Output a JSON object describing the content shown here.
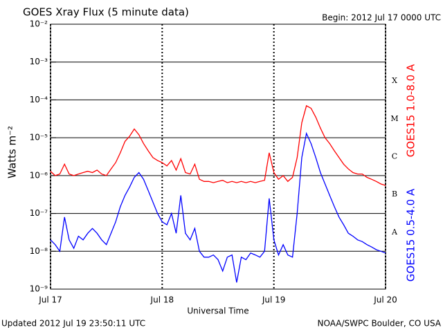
{
  "chart_data": {
    "type": "line",
    "title": "GOES Xray Flux (5 minute data)",
    "subtitle": "Begin:  2012 Jul 17 0000 UTC",
    "xlabel": "Universal Time",
    "ylabel": "Watts m⁻²",
    "footer_left": "Updated 2012 Jul 19 23:50:11 UTC",
    "footer_right": "NOAA/SWPC Boulder, CO USA",
    "flare_classes": [
      "X",
      "M",
      "C",
      "B",
      "A"
    ],
    "ylog": true,
    "grid": true,
    "xlim": [
      0,
      72
    ],
    "xticks": [
      {
        "value": 0,
        "label": "Jul 17"
      },
      {
        "value": 24,
        "label": "Jul 18"
      },
      {
        "value": 48,
        "label": "Jul 19"
      },
      {
        "value": 72,
        "label": "Jul 20"
      }
    ],
    "ylim": [
      1e-09,
      0.01
    ],
    "yticks": [
      {
        "value": 1e-09,
        "label": "10⁻⁹"
      },
      {
        "value": 1e-08,
        "label": "10⁻⁸"
      },
      {
        "value": 1e-07,
        "label": "10⁻⁷"
      },
      {
        "value": 1e-06,
        "label": "10⁻⁶"
      },
      {
        "value": 1e-05,
        "label": "10⁻⁵"
      },
      {
        "value": 0.0001,
        "label": "10⁻⁴"
      },
      {
        "value": 0.001,
        "label": "10⁻³"
      },
      {
        "value": 0.01,
        "label": "10⁻²"
      }
    ],
    "x": [
      0,
      1,
      2,
      3,
      4,
      5,
      6,
      7,
      8,
      9,
      10,
      11,
      12,
      13,
      14,
      15,
      16,
      17,
      18,
      19,
      20,
      21,
      22,
      23,
      24,
      25,
      26,
      27,
      28,
      29,
      30,
      31,
      32,
      33,
      34,
      35,
      36,
      37,
      38,
      39,
      40,
      41,
      42,
      43,
      44,
      45,
      46,
      47,
      48,
      49,
      50,
      51,
      52,
      53,
      54,
      55,
      56,
      57,
      58,
      59,
      60,
      61,
      62,
      63,
      64,
      65,
      66,
      67,
      68,
      69,
      70,
      71,
      72
    ],
    "series": [
      {
        "name": "GOES15 1.0-8.0 A",
        "color": "#ff0000",
        "values": [
          1.3e-06,
          1e-06,
          1.1e-06,
          2e-06,
          1.1e-06,
          1e-06,
          1.1e-06,
          1.2e-06,
          1.3e-06,
          1.2e-06,
          1.4e-06,
          1.1e-06,
          1e-06,
          1.5e-06,
          2.2e-06,
          4e-06,
          8e-06,
          1.1e-05,
          1.7e-05,
          1.2e-05,
          7e-06,
          4.5e-06,
          3e-06,
          2.5e-06,
          2.2e-06,
          1.8e-06,
          2.5e-06,
          1.4e-06,
          2.8e-06,
          1.2e-06,
          1.1e-06,
          2e-06,
          8e-07,
          7e-07,
          7e-07,
          6.5e-07,
          7e-07,
          7.5e-07,
          6.5e-07,
          7e-07,
          6.5e-07,
          7e-07,
          6.5e-07,
          7e-07,
          6.5e-07,
          7e-07,
          7.5e-07,
          4e-06,
          1.2e-06,
          8e-07,
          1e-06,
          7e-07,
          9e-07,
          3e-06,
          2.5e-05,
          7e-05,
          6e-05,
          3.5e-05,
          1.8e-05,
          1e-05,
          7e-06,
          4.5e-06,
          3e-06,
          2e-06,
          1.5e-06,
          1.2e-06,
          1.1e-06,
          1.1e-06,
          9e-07,
          8e-07,
          7e-07,
          6e-07,
          5.5e-07
        ]
      },
      {
        "name": "GOES15 0.5-4.0 A",
        "color": "#0000ff",
        "values": [
          2e-08,
          1.5e-08,
          1e-08,
          8e-08,
          2e-08,
          1.2e-08,
          2.5e-08,
          2e-08,
          3e-08,
          4e-08,
          3e-08,
          2e-08,
          1.5e-08,
          3e-08,
          6e-08,
          1.5e-07,
          3e-07,
          5e-07,
          9e-07,
          1.2e-06,
          8e-07,
          4e-07,
          2e-07,
          1e-07,
          6e-08,
          5e-08,
          1e-07,
          3e-08,
          3e-07,
          3e-08,
          2e-08,
          4e-08,
          1e-08,
          7e-09,
          7e-09,
          8e-09,
          6e-09,
          3e-09,
          7e-09,
          8e-09,
          1.5e-09,
          7e-09,
          6e-09,
          9e-09,
          8e-09,
          7e-09,
          1e-08,
          2.5e-07,
          2e-08,
          8e-09,
          1.5e-08,
          8e-09,
          7e-09,
          1e-07,
          3e-06,
          1.3e-05,
          7e-06,
          3e-06,
          1.2e-06,
          6e-07,
          3e-07,
          1.5e-07,
          8e-08,
          5e-08,
          3e-08,
          2.5e-08,
          2e-08,
          1.8e-08,
          1.5e-08,
          1.3e-08,
          1.1e-08,
          1e-08,
          9e-09
        ]
      }
    ]
  }
}
